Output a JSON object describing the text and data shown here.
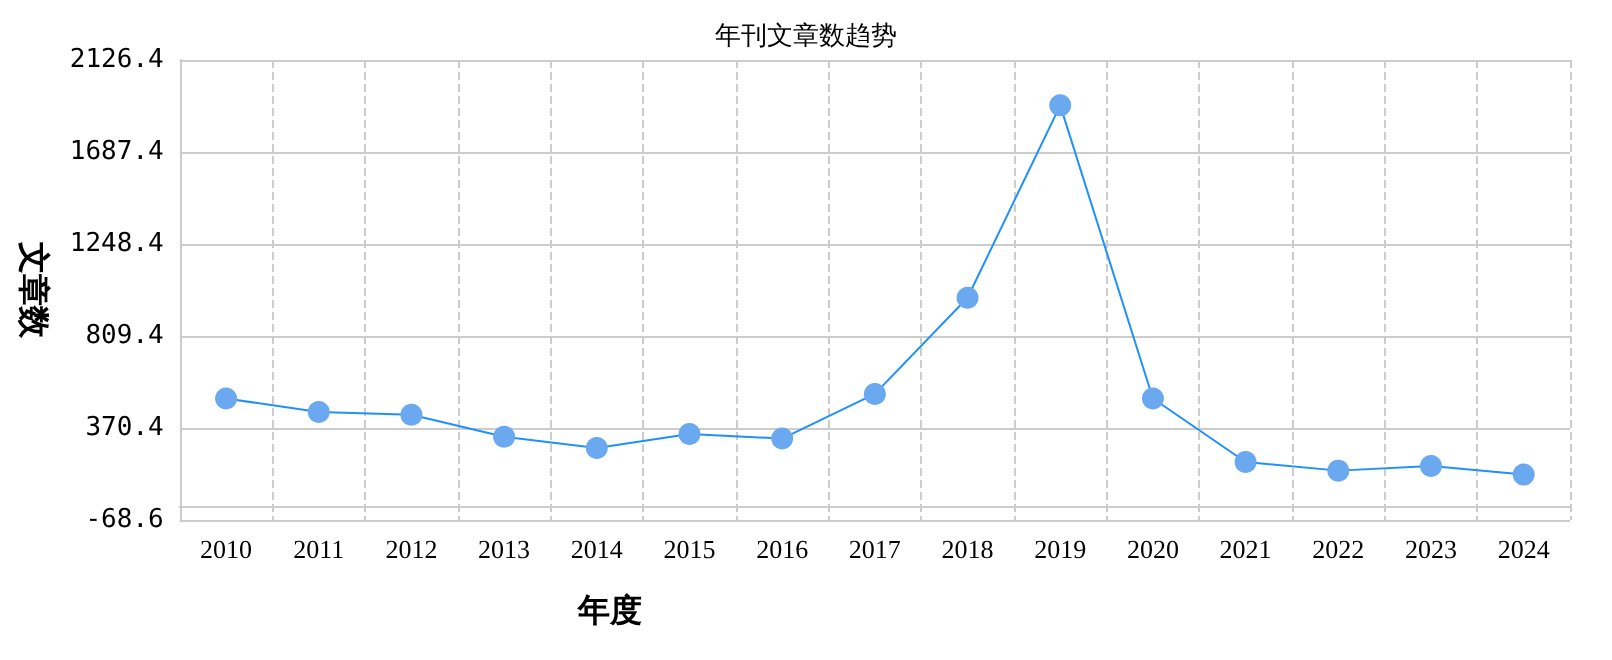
{
  "chart_data": {
    "type": "line",
    "title": "年刊文章数趋势",
    "xlabel": "年度",
    "ylabel": "文章数",
    "categories": [
      "2010",
      "2011",
      "2012",
      "2013",
      "2014",
      "2015",
      "2016",
      "2017",
      "2018",
      "2019",
      "2020",
      "2021",
      "2022",
      "2023",
      "2024"
    ],
    "series": [
      {
        "color": "#1e90ff",
        "values": [
          511,
          447,
          434,
          329,
          275,
          342,
          320,
          533,
          992,
          1910,
          511,
          208,
          167,
          189,
          148
        ]
      }
    ],
    "ylim": [
      -68.6,
      2126.4
    ],
    "yticks": [
      -68.6,
      370.4,
      809.4,
      1248.4,
      1687.4,
      2126.4
    ],
    "grid": true,
    "marker": "circle",
    "line_style": "solid"
  }
}
